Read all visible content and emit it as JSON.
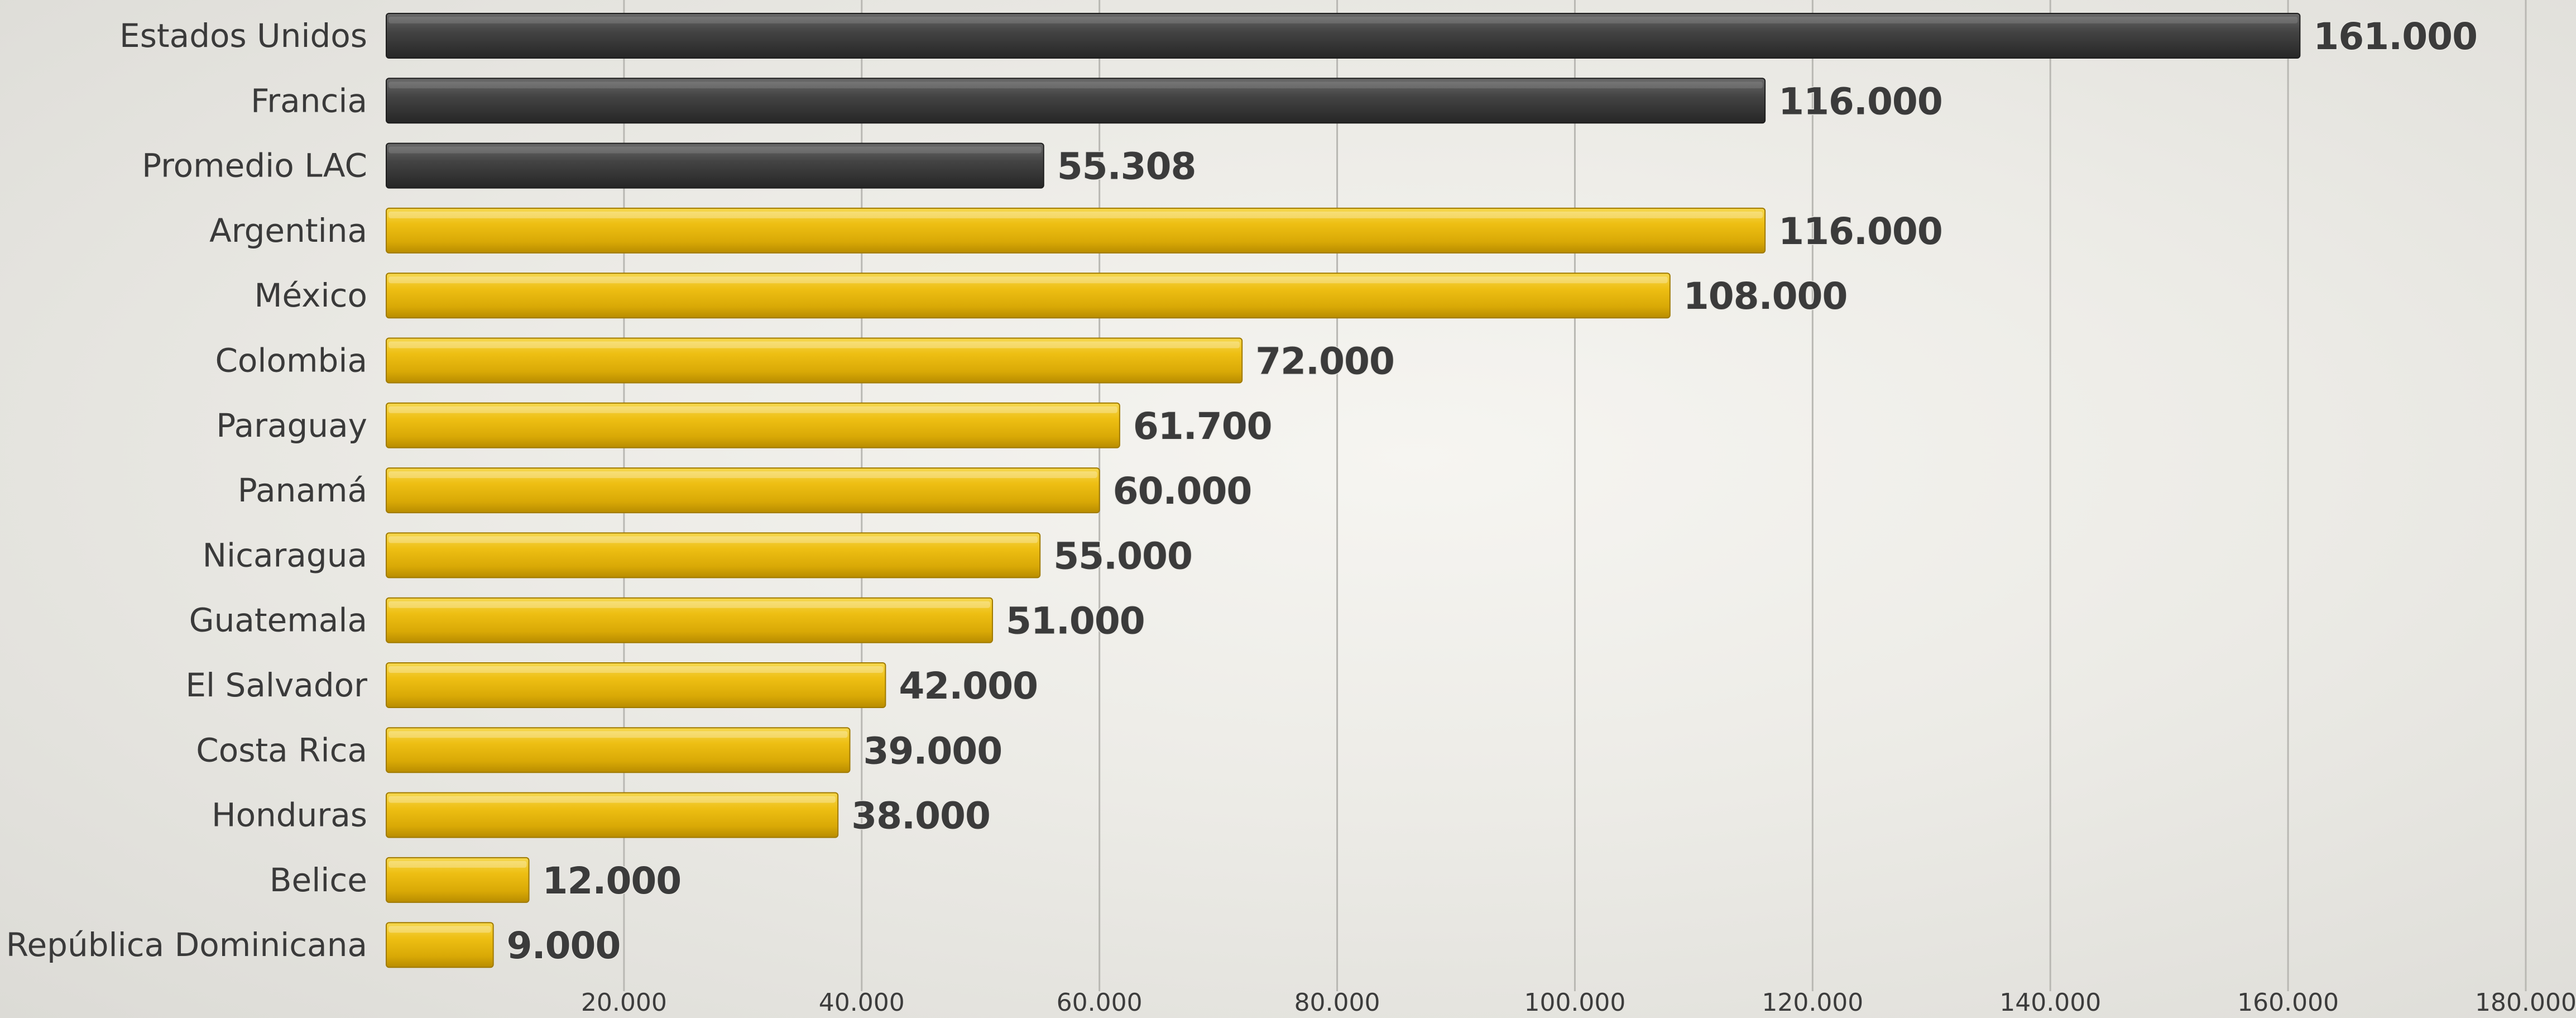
{
  "chart_data": {
    "type": "bar",
    "orientation": "horizontal",
    "title": "",
    "xlabel": "",
    "ylabel": "",
    "xlim": [
      0,
      180000
    ],
    "grid": true,
    "legend": "none",
    "categories": [
      "Estados Unidos",
      "Francia",
      "Promedio LAC",
      "Argentina",
      "México",
      "Colombia",
      "Paraguay",
      "Panamá",
      "Nicaragua",
      "Guatemala",
      "El Salvador",
      "Costa Rica",
      "Honduras",
      "Belice",
      "República Dominicana"
    ],
    "values": [
      161000,
      116000,
      55308,
      116000,
      108000,
      72000,
      61700,
      60000,
      55000,
      51000,
      42000,
      39000,
      38000,
      12000,
      9000
    ],
    "value_labels": [
      "161.000",
      "116.000",
      "55.308",
      "116.000",
      "108.000",
      "72.000",
      "61.700",
      "60.000",
      "55.000",
      "51.000",
      "42.000",
      "39.000",
      "38.000",
      "12.000",
      "9.000"
    ],
    "bar_groups": [
      "reference",
      "reference",
      "reference",
      "country",
      "country",
      "country",
      "country",
      "country",
      "country",
      "country",
      "country",
      "country",
      "country",
      "country",
      "country"
    ],
    "x_ticks": [
      20000,
      40000,
      60000,
      80000,
      100000,
      120000,
      140000,
      160000,
      180000
    ],
    "x_tick_labels": [
      "20.000",
      "40.000",
      "60.000",
      "80.000",
      "100.000",
      "120.000",
      "140.000",
      "160.000",
      "180.000"
    ],
    "colors": {
      "reference": "#3b3b3b",
      "country": "#e8b80b",
      "gridline": "#b9b8b3",
      "text": "#3a3a3a"
    }
  }
}
